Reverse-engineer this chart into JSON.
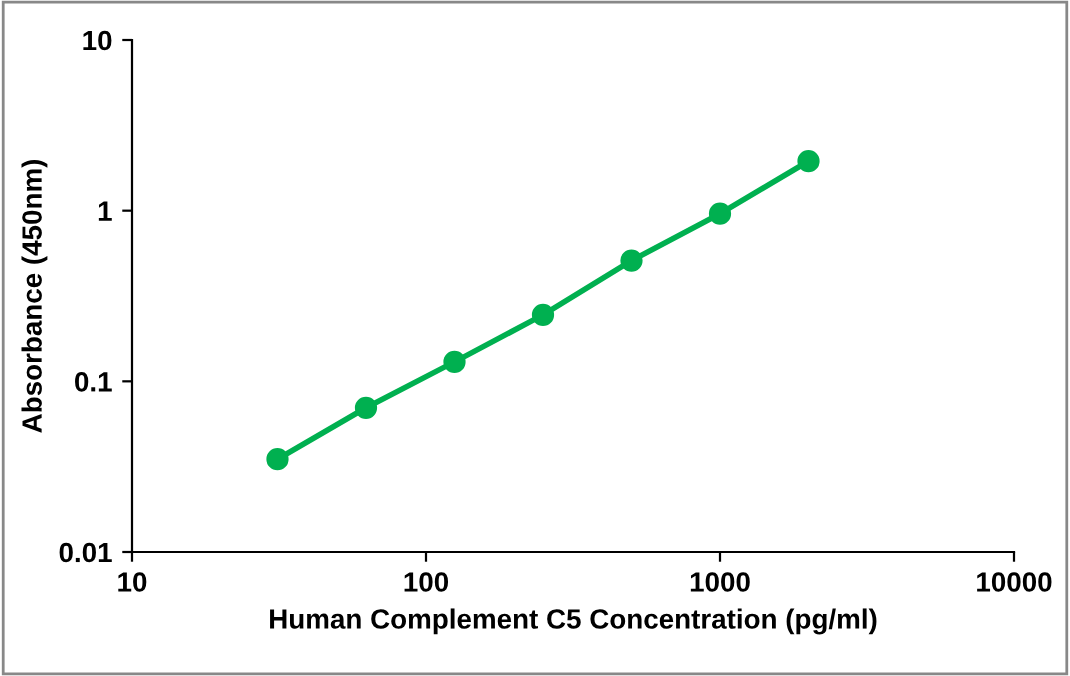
{
  "chart_data": {
    "type": "line",
    "xlabel": "Human Complement C5 Concentration (pg/ml)",
    "ylabel": "Absorbance (450nm)",
    "log": "xy",
    "x": [
      31.25,
      62.5,
      125,
      250,
      500,
      1000,
      2000
    ],
    "series": [
      {
        "color": "#00b050",
        "values": [
          0.035,
          0.07,
          0.13,
          0.245,
          0.51,
          0.96,
          1.95
        ]
      }
    ],
    "marker": "circle",
    "line_style": "solid",
    "grid": false,
    "xlim": [
      10,
      10000
    ],
    "xticks": [
      10,
      100,
      1000,
      10000
    ],
    "ylim": [
      0.01,
      10
    ],
    "yticks": [
      0.01,
      0.1,
      1,
      10
    ]
  }
}
